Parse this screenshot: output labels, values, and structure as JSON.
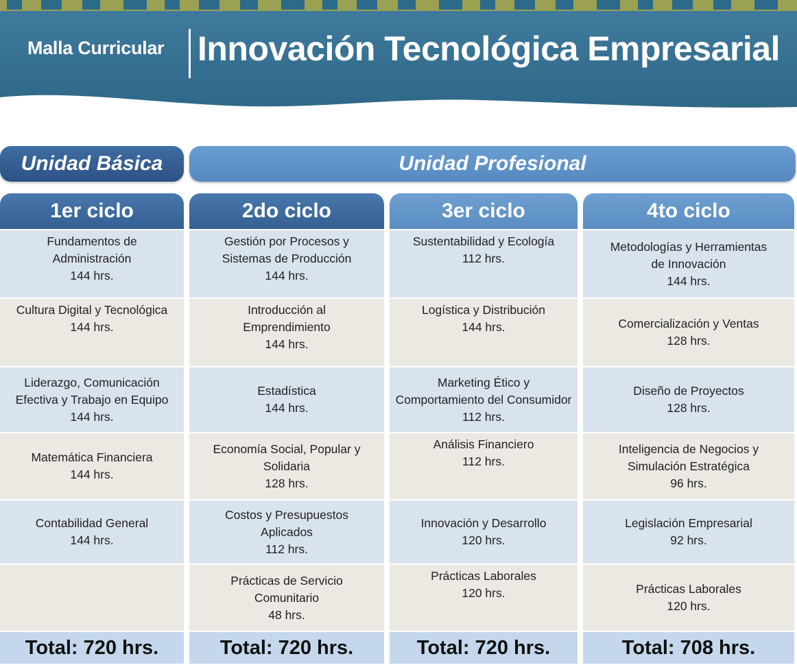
{
  "header": {
    "subtitle": "Malla Curricular",
    "title": "Innovación Tecnológica Empresarial"
  },
  "units": {
    "basic": "Unidad Básica",
    "professional": "Unidad Profesional"
  },
  "cycles": [
    {
      "title": "1er ciclo",
      "courses": [
        {
          "name": "Fundamentos de\nAdministración",
          "hours": "144 hrs."
        },
        {
          "name": "Cultura Digital y Tecnológica",
          "hours": "144 hrs."
        },
        {
          "name": "Liderazgo, Comunicación\nEfectiva y Trabajo en Equipo",
          "hours": "144 hrs."
        },
        {
          "name": "Matemática Financiera",
          "hours": "144 hrs."
        },
        {
          "name": "Contabilidad General",
          "hours": "144 hrs."
        }
      ],
      "total": "Total: 720 hrs."
    },
    {
      "title": "2do ciclo",
      "courses": [
        {
          "name": "Gestión por Procesos y\nSistemas de Producción",
          "hours": "144 hrs."
        },
        {
          "name": "Introducción al\nEmprendimiento",
          "hours": "144 hrs."
        },
        {
          "name": "Estadística",
          "hours": "144 hrs."
        },
        {
          "name": "Economía Social, Popular y\nSolidaria",
          "hours": "128 hrs."
        },
        {
          "name": "Costos y Presupuestos\nAplicados",
          "hours": "112 hrs."
        },
        {
          "name": "Prácticas de Servicio\nComunitario",
          "hours": "48 hrs."
        }
      ],
      "total": "Total: 720 hrs."
    },
    {
      "title": "3er ciclo",
      "courses": [
        {
          "name": "Sustentabilidad y Ecología",
          "hours": "112 hrs."
        },
        {
          "name": "Logística y Distribución",
          "hours": "144 hrs."
        },
        {
          "name": "Marketing Ético y\nComportamiento del Consumidor",
          "hours": "112 hrs."
        },
        {
          "name": "Análisis Financiero",
          "hours": "112 hrs."
        },
        {
          "name": "Innovación y Desarrollo",
          "hours": "120 hrs."
        },
        {
          "name": "Prácticas Laborales",
          "hours": "120 hrs."
        }
      ],
      "total": "Total: 720 hrs."
    },
    {
      "title": "4to ciclo",
      "courses": [
        {
          "name": "Metodologías y Herramientas\nde Innovación",
          "hours": "144 hrs."
        },
        {
          "name": "Comercialización y Ventas",
          "hours": "128 hrs."
        },
        {
          "name": "Diseño de Proyectos",
          "hours": "128 hrs."
        },
        {
          "name": "Inteligencia de Negocios y\nSimulación Estratégica",
          "hours": "96 hrs."
        },
        {
          "name": "Legislación Empresarial",
          "hours": "92 hrs."
        },
        {
          "name": "Prácticas Laborales",
          "hours": "120 hrs."
        }
      ],
      "total": "Total: 708 hrs."
    }
  ]
}
